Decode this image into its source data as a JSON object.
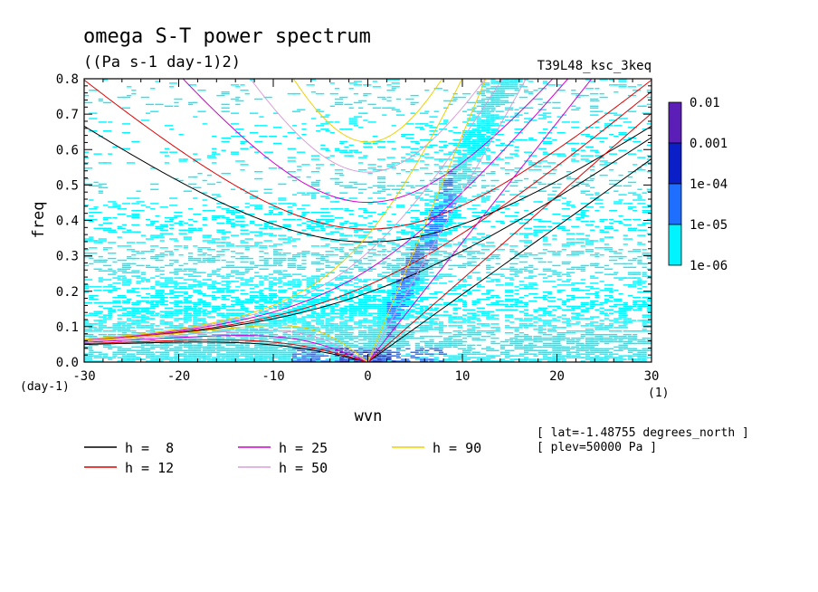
{
  "chart_data": {
    "type": "heatmap",
    "title": "omega S-T power spectrum",
    "subtitle": "((Pa s-1 day-1)2)",
    "run_label": "T39L48_ksc_3keq",
    "xlabel": "wvn",
    "ylabel": "freq",
    "x_unit": "(1)",
    "y_unit": "(day-1)",
    "xlim": [
      -30,
      30
    ],
    "ylim": [
      0,
      0.8
    ],
    "x_ticks": [
      "-30",
      "-20",
      "-10",
      "0",
      "10",
      "20",
      "30"
    ],
    "y_ticks": [
      "0.0",
      "0.1",
      "0.2",
      "0.3",
      "0.4",
      "0.5",
      "0.6",
      "0.7",
      "0.8"
    ],
    "colorbar": {
      "levels": [
        "0.01",
        "0.001",
        "1e-04",
        "1e-05",
        "1e-06"
      ],
      "colors": [
        "#5b1fb8",
        "#0a1fc8",
        "#1e6eff",
        "#00f4ff"
      ]
    },
    "dispersion_curves": [
      {
        "name": "h =  8",
        "h": 8,
        "color": "#000000"
      },
      {
        "name": "h = 12",
        "h": 12,
        "color": "#e00000"
      },
      {
        "name": "h = 25",
        "h": 25,
        "color": "#d000d0"
      },
      {
        "name": "h = 50",
        "h": 50,
        "color": "#d8a0d8"
      },
      {
        "name": "h = 90",
        "h": 90,
        "color": "#f0d000"
      }
    ],
    "annotations": [
      "[ lat=-1.48755 degrees_north ]",
      "[ plev=50000 Pa ]"
    ]
  }
}
